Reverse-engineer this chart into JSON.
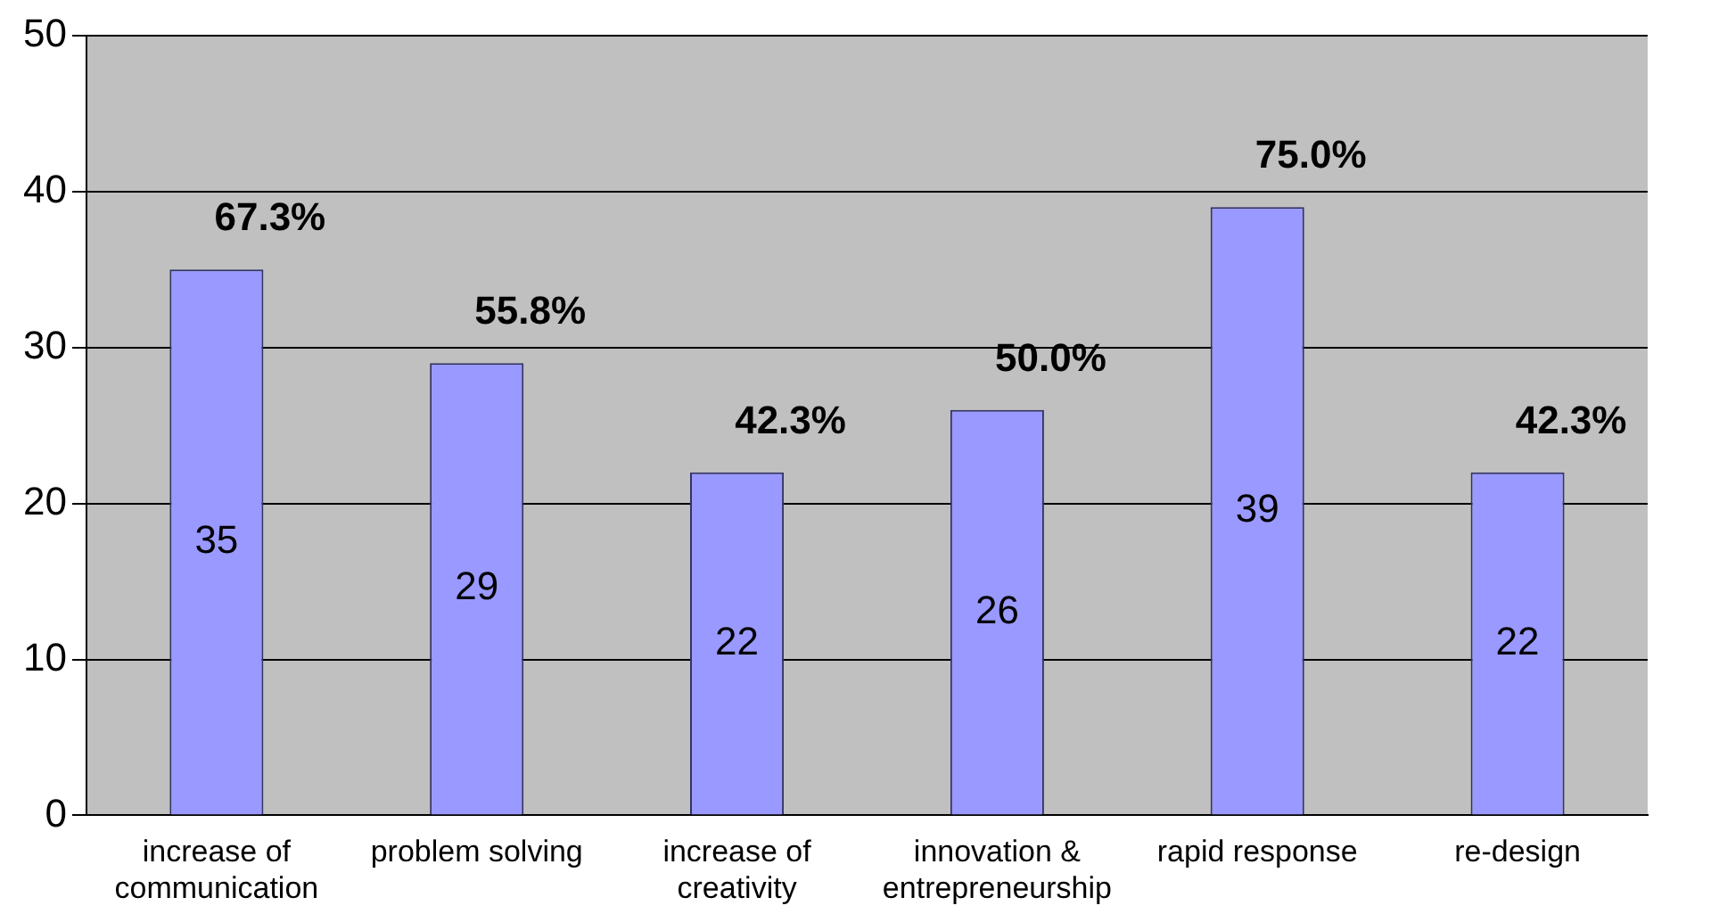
{
  "chart_data": {
    "type": "bar",
    "categories": [
      "increase of communication",
      "problem solving",
      "increase of creativity",
      "innovation & entrepreneurship",
      "rapid response",
      "re-design"
    ],
    "values": [
      35,
      29,
      22,
      26,
      39,
      22
    ],
    "color": "#9999ff",
    "ylim": [
      0,
      50
    ],
    "yticks": [
      0,
      10,
      20,
      30,
      40,
      50
    ],
    "grid": "y",
    "legend": false,
    "data_labels": true,
    "annotations": [
      {
        "text": "67.3%",
        "x": "increase of communication",
        "y": 35
      },
      {
        "text": "55.8%",
        "x": "problem solving",
        "y": 29
      },
      {
        "text": "42.3%",
        "x": "increase of creativity",
        "y": 22
      },
      {
        "text": "50.0%",
        "x": "innovation & entrepreneurship",
        "y": 26
      },
      {
        "text": "75.0%",
        "x": "rapid response",
        "y": 39
      },
      {
        "text": "42.3%",
        "x": "re-design",
        "y": 22
      }
    ]
  }
}
